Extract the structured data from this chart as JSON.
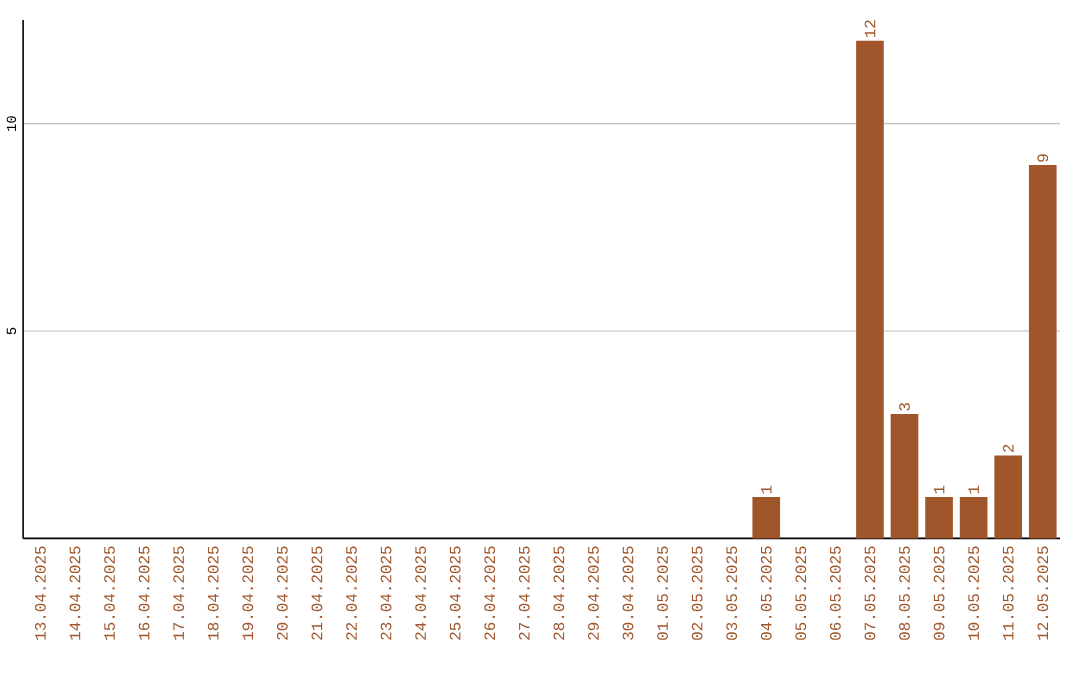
{
  "chart_data": {
    "type": "bar",
    "categories": [
      "13.04.2025",
      "14.04.2025",
      "15.04.2025",
      "16.04.2025",
      "17.04.2025",
      "18.04.2025",
      "19.04.2025",
      "20.04.2025",
      "21.04.2025",
      "22.04.2025",
      "23.04.2025",
      "24.04.2025",
      "25.04.2025",
      "26.04.2025",
      "27.04.2025",
      "28.04.2025",
      "29.04.2025",
      "30.04.2025",
      "01.05.2025",
      "02.05.2025",
      "03.05.2025",
      "04.05.2025",
      "05.05.2025",
      "06.05.2025",
      "07.05.2025",
      "08.05.2025",
      "09.05.2025",
      "10.05.2025",
      "11.05.2025",
      "12.05.2025"
    ],
    "values": [
      0,
      0,
      0,
      0,
      0,
      0,
      0,
      0,
      0,
      0,
      0,
      0,
      0,
      0,
      0,
      0,
      0,
      0,
      0,
      0,
      0,
      1,
      0,
      0,
      12,
      3,
      1,
      1,
      2,
      9
    ],
    "value_labels": [
      null,
      null,
      null,
      null,
      null,
      null,
      null,
      null,
      null,
      null,
      null,
      null,
      null,
      null,
      null,
      null,
      null,
      null,
      null,
      null,
      null,
      "1",
      null,
      null,
      "12",
      "3",
      "1",
      "1",
      "2",
      "9"
    ],
    "color": "#a0562a",
    "ylim": [
      0,
      12.5
    ],
    "yticks": [
      5,
      10
    ],
    "grid": "y"
  }
}
